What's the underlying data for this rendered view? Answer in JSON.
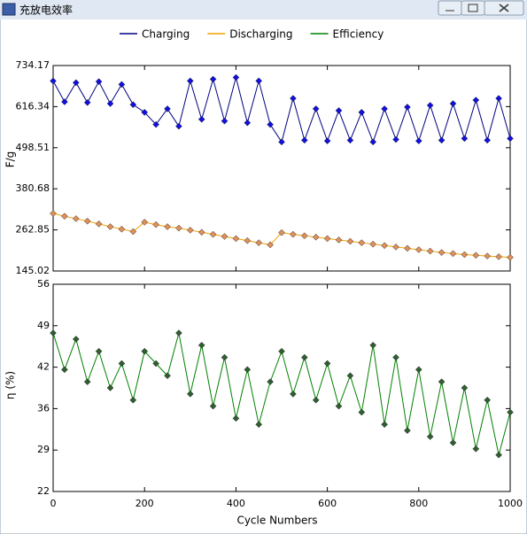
{
  "window": {
    "title": "充放电效率"
  },
  "chart_data": [
    {
      "type": "line",
      "ylabel": "F/g",
      "x": [
        0,
        25,
        50,
        75,
        100,
        125,
        150,
        175,
        200,
        225,
        250,
        275,
        300,
        325,
        350,
        375,
        400,
        425,
        450,
        475,
        500,
        525,
        550,
        575,
        600,
        625,
        650,
        675,
        700,
        725,
        750,
        775,
        800,
        825,
        850,
        875,
        900,
        925,
        950,
        975,
        1000
      ],
      "xlim": [
        0,
        1000
      ],
      "ylim": [
        145.02,
        734.17
      ],
      "yticks": [
        145.02,
        262.85,
        380.68,
        498.51,
        616.34,
        734.17
      ],
      "series": [
        {
          "name": "Charging",
          "color": "#000080",
          "marker_color": "#1010e0",
          "values": [
            690,
            630,
            685,
            628,
            688,
            625,
            680,
            622,
            600,
            565,
            610,
            560,
            690,
            580,
            695,
            575,
            700,
            570,
            690,
            565,
            515,
            640,
            520,
            610,
            518,
            605,
            520,
            600,
            515,
            610,
            522,
            615,
            518,
            620,
            520,
            625,
            525,
            635,
            520,
            640,
            525
          ]
        },
        {
          "name": "Discharging",
          "color": "#f0a000",
          "marker_color": "#e0905a",
          "values": [
            310,
            302,
            295,
            288,
            280,
            272,
            265,
            258,
            285,
            278,
            272,
            268,
            262,
            256,
            250,
            244,
            238,
            232,
            226,
            220,
            255,
            250,
            246,
            242,
            238,
            234,
            230,
            226,
            222,
            218,
            214,
            210,
            206,
            202,
            198,
            195,
            192,
            190,
            188,
            186,
            184
          ]
        }
      ]
    },
    {
      "type": "line",
      "ylabel": "η (%)",
      "xlabel": "Cycle Numbers",
      "x": [
        0,
        25,
        50,
        75,
        100,
        125,
        150,
        175,
        200,
        225,
        250,
        275,
        300,
        325,
        350,
        375,
        400,
        425,
        450,
        475,
        500,
        525,
        550,
        575,
        600,
        625,
        650,
        675,
        700,
        725,
        750,
        775,
        800,
        825,
        850,
        875,
        900,
        925,
        950,
        975,
        1000
      ],
      "xlim": [
        0,
        1000
      ],
      "ylim": [
        22,
        56
      ],
      "xticks": [
        0,
        200,
        400,
        600,
        800,
        1000
      ],
      "yticks": [
        22,
        {
          "value": 28.8,
          "label": "29"
        },
        {
          "value": 35.6,
          "label": "36"
        },
        {
          "value": 42.4,
          "label": "42"
        },
        {
          "value": 49.2,
          "label": "49"
        },
        56
      ],
      "series": [
        {
          "name": "Efficiency",
          "color": "#008000",
          "marker_color": "#2f5f2f",
          "values": [
            48,
            42,
            47,
            40,
            45,
            39,
            43,
            37,
            45,
            43,
            41,
            48,
            38,
            46,
            36,
            44,
            34,
            42,
            33,
            40,
            45,
            38,
            44,
            37,
            43,
            36,
            41,
            35,
            46,
            33,
            44,
            32,
            42,
            31,
            40,
            30,
            39,
            29,
            37,
            28,
            35
          ]
        }
      ]
    }
  ]
}
